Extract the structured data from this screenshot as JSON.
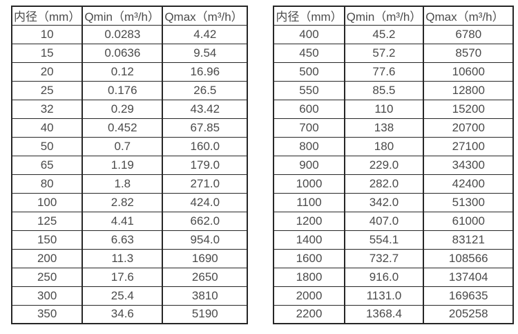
{
  "colors": {
    "border": "#262626",
    "text": "#4a4a4a",
    "background": "#ffffff"
  },
  "tables": [
    {
      "name": "small-diameter-flow-ranges",
      "headers": [
        "内径（mm）",
        "Qmin（m³/h）",
        "Qmax（m³/h）"
      ],
      "rows": [
        [
          "10",
          "0.0283",
          "4.42"
        ],
        [
          "15",
          "0.0636",
          "9.54"
        ],
        [
          "20",
          "0.12",
          "16.96"
        ],
        [
          "25",
          "0.176",
          "26.5"
        ],
        [
          "32",
          "0.29",
          "43.42"
        ],
        [
          "40",
          "0.452",
          "67.85"
        ],
        [
          "50",
          "0.7",
          "160.0"
        ],
        [
          "65",
          "1.19",
          "179.0"
        ],
        [
          "80",
          "1.8",
          "271.0"
        ],
        [
          "100",
          "2.82",
          "424.0"
        ],
        [
          "125",
          "4.41",
          "662.0"
        ],
        [
          "150",
          "6.63",
          "954.0"
        ],
        [
          "200",
          "11.3",
          "1690"
        ],
        [
          "250",
          "17.6",
          "2650"
        ],
        [
          "300",
          "25.4",
          "3810"
        ],
        [
          "350",
          "34.6",
          "5190"
        ]
      ]
    },
    {
      "name": "large-diameter-flow-ranges",
      "headers": [
        "内径（mm）",
        "Qmin（m³/h）",
        "Qmax（m³/h）"
      ],
      "rows": [
        [
          "400",
          "45.2",
          "6780"
        ],
        [
          "450",
          "57.2",
          "8570"
        ],
        [
          "500",
          "77.6",
          "10600"
        ],
        [
          "550",
          "85.5",
          "12800"
        ],
        [
          "600",
          "110",
          "15200"
        ],
        [
          "700",
          "138",
          "20700"
        ],
        [
          "800",
          "180",
          "27100"
        ],
        [
          "900",
          "229.0",
          "34300"
        ],
        [
          "1000",
          "282.0",
          "42400"
        ],
        [
          "1100",
          "342.0",
          "51300"
        ],
        [
          "1200",
          "407.0",
          "61000"
        ],
        [
          "1400",
          "554.1",
          "83121"
        ],
        [
          "1600",
          "732.7",
          "108566"
        ],
        [
          "1800",
          "916.0",
          "137404"
        ],
        [
          "2000",
          "1131.0",
          "169635"
        ],
        [
          "2200",
          "1368.4",
          "205258"
        ]
      ]
    }
  ]
}
